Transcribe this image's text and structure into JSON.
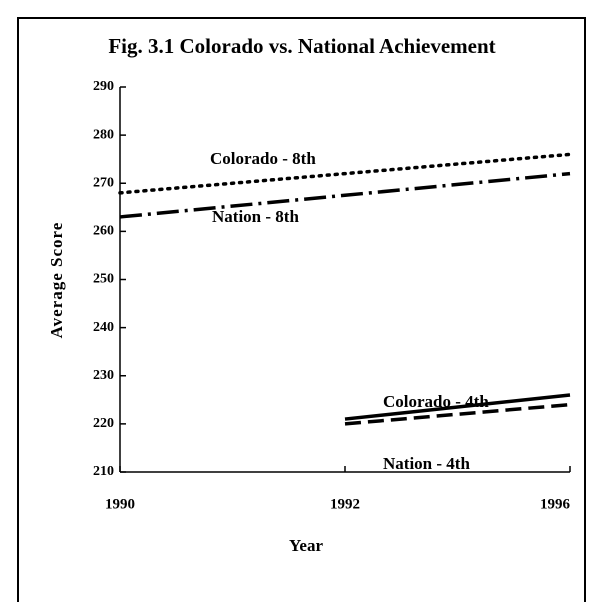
{
  "chart_data": {
    "type": "line",
    "title": "Fig. 3.1 Colorado vs. National Achievement",
    "xlabel": "Year",
    "ylabel": "Average Score",
    "categories": [
      "1990",
      "1992",
      "1996"
    ],
    "series": [
      {
        "name": "Colorado - 8th",
        "color": "#000000",
        "dash": "dotted",
        "values": [
          268,
          272,
          276
        ]
      },
      {
        "name": "Nation - 8th",
        "color": "#000000",
        "dash": "dashdot",
        "values": [
          263,
          267.5,
          272
        ]
      },
      {
        "name": "Colorado - 4th",
        "color": "#000000",
        "dash": "solid",
        "values": [
          null,
          221,
          226
        ]
      },
      {
        "name": "Nation - 4th",
        "color": "#000000",
        "dash": "dashed",
        "values": [
          null,
          220,
          224
        ]
      }
    ],
    "ylim": [
      210,
      290
    ],
    "yticks": [
      210,
      220,
      230,
      240,
      250,
      260,
      270,
      280,
      290
    ]
  }
}
